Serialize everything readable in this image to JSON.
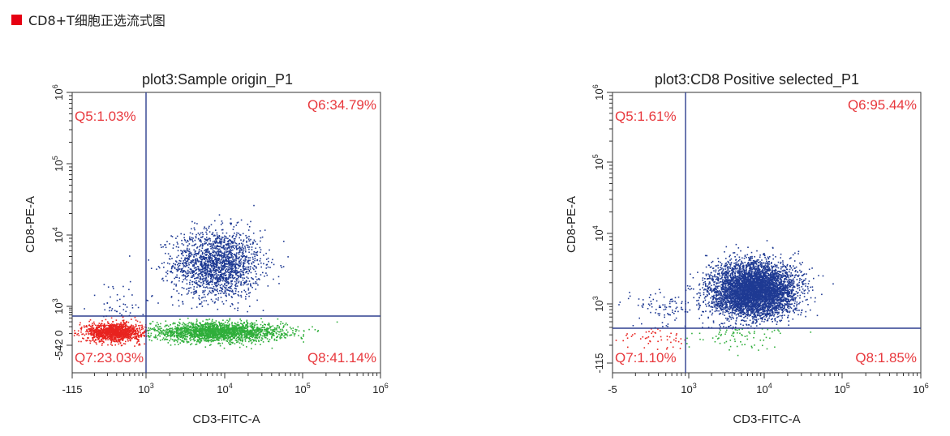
{
  "header": {
    "title": "CD8+T细胞正选流式图",
    "marker_color": "#e60012"
  },
  "colors": {
    "q6": "#1f3a93",
    "q5": "#1f3a93",
    "q7": "#e8231f",
    "q8": "#2fae3a",
    "gate": "#2e3f8f",
    "label": "#e8383d"
  },
  "chart_data": [
    {
      "type": "scatter",
      "title": "plot3:Sample origin_P1",
      "xlabel": "CD3-FITC-A",
      "ylabel": "CD8-PE-A",
      "x_ticks": [
        {
          "base": "-115",
          "exp": ""
        },
        {
          "base": "10",
          "exp": "3"
        },
        {
          "base": "10",
          "exp": "4"
        },
        {
          "base": "10",
          "exp": "5"
        },
        {
          "base": "10",
          "exp": "6"
        }
      ],
      "y_ticks": [
        {
          "base": "-542 0",
          "exp": ""
        },
        {
          "base": "10",
          "exp": "3"
        },
        {
          "base": "10",
          "exp": "4"
        },
        {
          "base": "10",
          "exp": "5"
        },
        {
          "base": "10",
          "exp": "6"
        }
      ],
      "quadrants": {
        "Q5": "Q5:1.03%",
        "Q6": "Q6:34.79%",
        "Q7": "Q7:23.03%",
        "Q8": "Q8:41.14%"
      },
      "populations": [
        {
          "quadrant": "Q6",
          "center_log": [
            3.9,
            3.6
          ],
          "spread_log": [
            0.28,
            0.24
          ],
          "share": 0.3479
        },
        {
          "quadrant": "Q8",
          "center_log": [
            3.9,
            2.35
          ],
          "spread_log": [
            0.42,
            0.12
          ],
          "share": 0.4114
        },
        {
          "quadrant": "Q7",
          "center_log": [
            2.55,
            2.35
          ],
          "spread_log": [
            0.18,
            0.12
          ],
          "share": 0.2303
        },
        {
          "quadrant": "Q5",
          "center_log": [
            2.6,
            3.0
          ],
          "spread_log": [
            0.2,
            0.2
          ],
          "share": 0.0103
        }
      ]
    },
    {
      "type": "scatter",
      "title": "plot3:CD8 Positive selected_P1",
      "xlabel": "CD3-FITC-A",
      "ylabel": "CD8-PE-A",
      "x_ticks": [
        {
          "base": "-5",
          "exp": ""
        },
        {
          "base": "10",
          "exp": "3"
        },
        {
          "base": "10",
          "exp": "4"
        },
        {
          "base": "10",
          "exp": "5"
        },
        {
          "base": "10",
          "exp": "6"
        }
      ],
      "y_ticks": [
        {
          "base": "-115",
          "exp": ""
        },
        {
          "base": "10",
          "exp": "3"
        },
        {
          "base": "10",
          "exp": "4"
        },
        {
          "base": "10",
          "exp": "5"
        },
        {
          "base": "10",
          "exp": "6"
        }
      ],
      "quadrants": {
        "Q5": "Q5:1.61%",
        "Q6": "Q6:95.44%",
        "Q7": "Q7:1.10%",
        "Q8": "Q8:1.85%"
      },
      "populations": [
        {
          "quadrant": "Q6",
          "center_log": [
            3.85,
            3.2
          ],
          "spread_log": [
            0.28,
            0.2
          ],
          "share": 0.9544
        },
        {
          "quadrant": "Q8",
          "center_log": [
            3.6,
            2.5
          ],
          "spread_log": [
            0.35,
            0.12
          ],
          "share": 0.0185
        },
        {
          "quadrant": "Q7",
          "center_log": [
            2.6,
            2.45
          ],
          "spread_log": [
            0.25,
            0.12
          ],
          "share": 0.011
        },
        {
          "quadrant": "Q5",
          "center_log": [
            2.7,
            2.95
          ],
          "spread_log": [
            0.25,
            0.15
          ],
          "share": 0.0161
        }
      ]
    }
  ]
}
